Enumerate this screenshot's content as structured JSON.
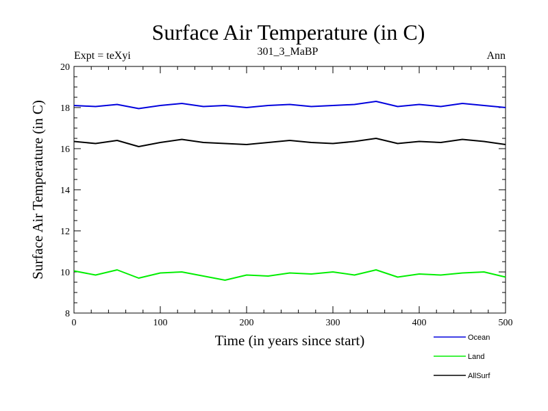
{
  "chart_data": {
    "type": "line",
    "title": "Surface Air Temperature (in C)",
    "subtitle_left": "Expt = teXyi",
    "subtitle_center": "301_3_MaBP",
    "subtitle_right": "Ann",
    "xlabel": "Time (in years since start)",
    "ylabel": "Surface Air Temperature (in C)",
    "xlim": [
      0,
      500
    ],
    "ylim": [
      8,
      20
    ],
    "xticks": [
      0,
      100,
      200,
      300,
      400,
      500
    ],
    "yticks": [
      8,
      10,
      12,
      14,
      16,
      18,
      20
    ],
    "grid": false,
    "legend_position": "bottom-right, below plot",
    "x": [
      0,
      25,
      50,
      75,
      100,
      125,
      150,
      175,
      200,
      225,
      250,
      275,
      300,
      325,
      350,
      375,
      400,
      425,
      450,
      475,
      500
    ],
    "series": [
      {
        "name": "Ocean",
        "color": "#0000dd",
        "values": [
          18.1,
          18.05,
          18.15,
          17.95,
          18.1,
          18.2,
          18.05,
          18.1,
          18.0,
          18.1,
          18.15,
          18.05,
          18.1,
          18.15,
          18.3,
          18.05,
          18.15,
          18.05,
          18.2,
          18.1,
          18.0
        ]
      },
      {
        "name": "Land",
        "color": "#00ee00",
        "values": [
          10.05,
          9.85,
          10.1,
          9.7,
          9.95,
          10.0,
          9.8,
          9.6,
          9.85,
          9.8,
          9.95,
          9.9,
          10.0,
          9.85,
          10.1,
          9.75,
          9.9,
          9.85,
          9.95,
          10.0,
          9.75
        ]
      },
      {
        "name": "AllSurf",
        "color": "#000000",
        "values": [
          16.35,
          16.25,
          16.4,
          16.1,
          16.3,
          16.45,
          16.3,
          16.25,
          16.2,
          16.3,
          16.4,
          16.3,
          16.25,
          16.35,
          16.5,
          16.25,
          16.35,
          16.3,
          16.45,
          16.35,
          16.2
        ]
      }
    ]
  }
}
